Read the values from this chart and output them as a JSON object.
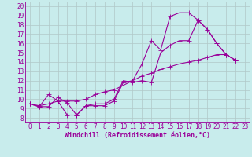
{
  "title": "",
  "xlabel": "Windchill (Refroidissement éolien,°C)",
  "ylabel": "",
  "bg_color": "#c8ecec",
  "line_color": "#990099",
  "xlim": [
    -0.5,
    23.5
  ],
  "ylim": [
    7.5,
    20.5
  ],
  "xticks": [
    0,
    1,
    2,
    3,
    4,
    5,
    6,
    7,
    8,
    9,
    10,
    11,
    12,
    13,
    14,
    15,
    16,
    17,
    18,
    19,
    20,
    21,
    22,
    23
  ],
  "yticks": [
    8,
    9,
    10,
    11,
    12,
    13,
    14,
    15,
    16,
    17,
    18,
    19,
    20
  ],
  "line1_x": [
    0,
    1,
    2,
    3,
    4,
    5,
    6,
    7,
    8,
    9,
    10,
    11,
    12,
    13,
    14,
    15,
    16,
    17,
    18,
    19,
    20,
    21,
    22
  ],
  "line1_y": [
    9.5,
    9.2,
    9.2,
    10.2,
    9.6,
    8.3,
    9.3,
    9.3,
    9.3,
    9.8,
    11.8,
    12.0,
    13.8,
    16.3,
    15.3,
    18.9,
    19.3,
    19.3,
    18.5,
    17.5,
    16.0,
    14.8,
    14.2
  ],
  "line2_x": [
    0,
    1,
    2,
    3,
    4,
    5,
    6,
    7,
    8,
    9,
    10,
    11,
    12,
    13,
    14,
    15,
    16,
    17,
    18,
    19,
    20,
    21,
    22
  ],
  "line2_y": [
    9.5,
    9.2,
    10.5,
    9.8,
    8.3,
    8.3,
    9.3,
    9.5,
    9.5,
    10.0,
    12.0,
    11.8,
    12.0,
    11.8,
    15.0,
    15.8,
    16.3,
    16.3,
    18.5,
    17.5,
    16.0,
    14.8,
    14.2
  ],
  "line3_x": [
    0,
    1,
    2,
    3,
    4,
    5,
    6,
    7,
    8,
    9,
    10,
    11,
    12,
    13,
    14,
    15,
    16,
    17,
    18,
    19,
    20,
    21,
    22
  ],
  "line3_y": [
    9.5,
    9.3,
    9.5,
    9.8,
    9.8,
    9.8,
    10.0,
    10.5,
    10.8,
    11.0,
    11.5,
    12.0,
    12.5,
    12.8,
    13.2,
    13.5,
    13.8,
    14.0,
    14.2,
    14.5,
    14.8,
    14.8,
    14.2
  ],
  "grid_color": "#b0c8c8",
  "font_color": "#990099",
  "font_size_ticks": 5.5,
  "font_size_xlabel": 6.0,
  "marker_size": 2.0,
  "line_width": 0.8
}
